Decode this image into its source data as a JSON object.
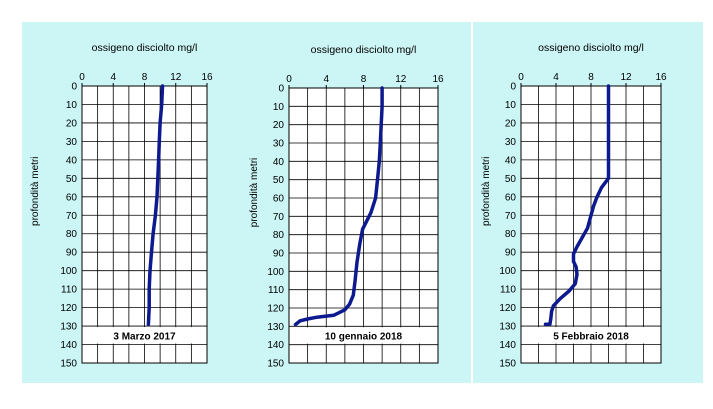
{
  "chart_data": [
    {
      "type": "line",
      "title": "ossigeno disciolto mg/l",
      "xlabel": "ossigeno disciolto mg/l",
      "ylabel": "profondità metri",
      "xlim": [
        0,
        16
      ],
      "ylim": [
        150,
        0
      ],
      "x_ticks": [
        0,
        4,
        8,
        12,
        16
      ],
      "y_ticks": [
        0,
        10,
        20,
        30,
        40,
        50,
        60,
        70,
        80,
        90,
        100,
        110,
        120,
        130,
        140,
        150
      ],
      "grid": true,
      "date_label": "3 Marzo 2017",
      "series_color": "#0d1a8f",
      "points": [
        {
          "x": 10.3,
          "y": 0
        },
        {
          "x": 10.2,
          "y": 10
        },
        {
          "x": 10.0,
          "y": 20
        },
        {
          "x": 9.9,
          "y": 30
        },
        {
          "x": 9.8,
          "y": 40
        },
        {
          "x": 9.7,
          "y": 50
        },
        {
          "x": 9.6,
          "y": 60
        },
        {
          "x": 9.4,
          "y": 70
        },
        {
          "x": 9.1,
          "y": 80
        },
        {
          "x": 8.9,
          "y": 90
        },
        {
          "x": 8.7,
          "y": 100
        },
        {
          "x": 8.6,
          "y": 110
        },
        {
          "x": 8.6,
          "y": 120
        },
        {
          "x": 8.5,
          "y": 129
        }
      ]
    },
    {
      "type": "line",
      "title": "ossigeno disciolto mg/l",
      "xlabel": "ossigeno disciolto mg/l",
      "ylabel": "profondità metri",
      "xlim": [
        0,
        16
      ],
      "ylim": [
        150,
        0
      ],
      "x_ticks": [
        0,
        4,
        8,
        12,
        16
      ],
      "y_ticks": [
        0,
        10,
        20,
        30,
        40,
        50,
        60,
        70,
        80,
        90,
        100,
        110,
        120,
        130,
        140,
        150
      ],
      "grid": true,
      "date_label": "10 gennaio 2018",
      "series_color": "#0d1a8f",
      "points": [
        {
          "x": 10.0,
          "y": 0
        },
        {
          "x": 10.0,
          "y": 10
        },
        {
          "x": 9.9,
          "y": 20
        },
        {
          "x": 9.8,
          "y": 30
        },
        {
          "x": 9.7,
          "y": 40
        },
        {
          "x": 9.5,
          "y": 50
        },
        {
          "x": 9.3,
          "y": 60
        },
        {
          "x": 8.8,
          "y": 68
        },
        {
          "x": 8.3,
          "y": 73
        },
        {
          "x": 7.9,
          "y": 77
        },
        {
          "x": 7.6,
          "y": 85
        },
        {
          "x": 7.3,
          "y": 95
        },
        {
          "x": 7.1,
          "y": 105
        },
        {
          "x": 6.9,
          "y": 113
        },
        {
          "x": 6.5,
          "y": 118
        },
        {
          "x": 6.0,
          "y": 121
        },
        {
          "x": 4.8,
          "y": 124
        },
        {
          "x": 3.0,
          "y": 125
        },
        {
          "x": 2.0,
          "y": 126
        },
        {
          "x": 1.2,
          "y": 127
        },
        {
          "x": 0.7,
          "y": 129
        }
      ]
    },
    {
      "type": "line",
      "title": "ossigeno disciolto mg/l",
      "xlabel": "ossigeno disciolto mg/l",
      "ylabel": "profondità metri",
      "xlim": [
        0,
        16
      ],
      "ylim": [
        150,
        0
      ],
      "x_ticks": [
        0,
        4,
        8,
        12,
        16
      ],
      "y_ticks": [
        0,
        10,
        20,
        30,
        40,
        50,
        60,
        70,
        80,
        90,
        100,
        110,
        120,
        130,
        140,
        150
      ],
      "grid": true,
      "date_label": "5 Febbraio 2018",
      "series_color": "#0d1a8f",
      "points": [
        {
          "x": 10.0,
          "y": 0
        },
        {
          "x": 10.0,
          "y": 10
        },
        {
          "x": 10.0,
          "y": 20
        },
        {
          "x": 10.0,
          "y": 30
        },
        {
          "x": 10.0,
          "y": 40
        },
        {
          "x": 10.0,
          "y": 50
        },
        {
          "x": 9.2,
          "y": 55
        },
        {
          "x": 8.7,
          "y": 60
        },
        {
          "x": 8.3,
          "y": 65
        },
        {
          "x": 8.0,
          "y": 70
        },
        {
          "x": 7.6,
          "y": 77
        },
        {
          "x": 7.0,
          "y": 82
        },
        {
          "x": 6.4,
          "y": 87
        },
        {
          "x": 6.0,
          "y": 91
        },
        {
          "x": 6.0,
          "y": 95
        },
        {
          "x": 6.3,
          "y": 98
        },
        {
          "x": 6.4,
          "y": 102
        },
        {
          "x": 6.2,
          "y": 107
        },
        {
          "x": 5.5,
          "y": 111
        },
        {
          "x": 4.5,
          "y": 115
        },
        {
          "x": 3.7,
          "y": 119
        },
        {
          "x": 3.5,
          "y": 122
        },
        {
          "x": 3.4,
          "y": 126
        },
        {
          "x": 3.3,
          "y": 129
        },
        {
          "x": 2.8,
          "y": 129
        }
      ]
    }
  ]
}
